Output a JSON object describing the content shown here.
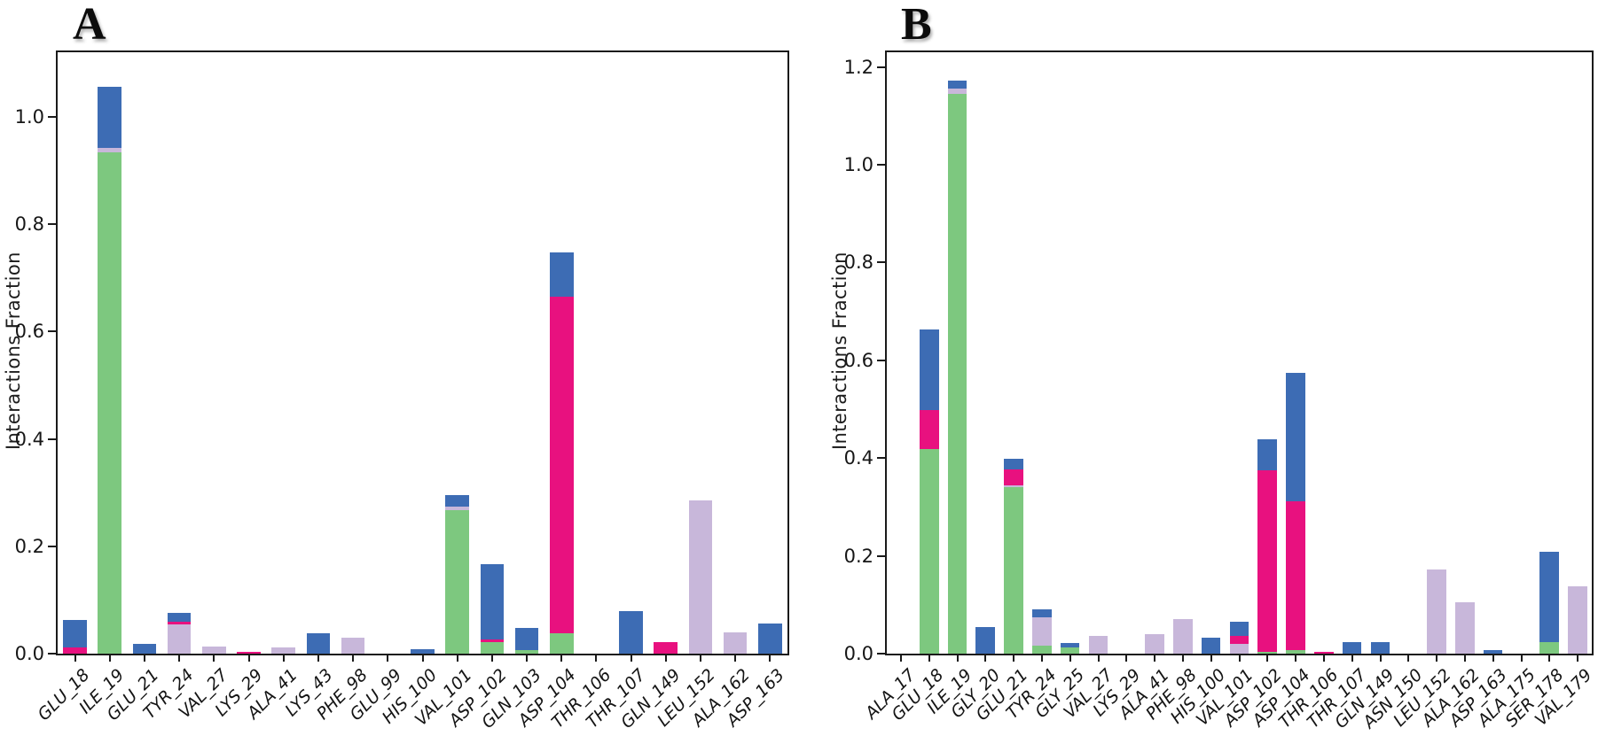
{
  "figure": {
    "background": "#ffffff"
  },
  "chart_data": [
    {
      "type": "bar",
      "stacked": true,
      "title": "A",
      "ylabel": "Interactions Fraction",
      "ylim": [
        0,
        1.12
      ],
      "yticks": [
        0.0,
        0.2,
        0.4,
        0.6,
        0.8,
        1.0
      ],
      "grid": false,
      "legend": "none",
      "categories": [
        "GLU_18",
        "ILE_19",
        "GLU_21",
        "TYR_24",
        "VAL_27",
        "LYS_29",
        "ALA_41",
        "LYS_43",
        "PHE_98",
        "GLU_99",
        "HIS_100",
        "VAL_101",
        "ASP_102",
        "GLN_103",
        "ASP_104",
        "THR_106",
        "THR_107",
        "GLN_149",
        "LEU_152",
        "ALA_162",
        "ASP_163"
      ],
      "series": [
        {
          "name": "green",
          "color": "#7dc87f",
          "values": [
            0,
            0.934,
            0,
            0,
            0,
            0,
            0,
            0,
            0,
            0,
            0,
            0.268,
            0.022,
            0.006,
            0.038,
            0,
            0,
            0,
            0,
            0,
            0
          ]
        },
        {
          "name": "lavender",
          "color": "#c8b7da",
          "values": [
            0,
            0.008,
            0,
            0.055,
            0.014,
            0,
            0.012,
            0,
            0.03,
            0,
            0,
            0.006,
            0,
            0,
            0,
            0,
            0,
            0,
            0.285,
            0.04,
            0
          ]
        },
        {
          "name": "magenta",
          "color": "#e8117f",
          "values": [
            0.012,
            0,
            0,
            0.005,
            0,
            0.004,
            0,
            0,
            0,
            0,
            0,
            0,
            0.004,
            0,
            0.626,
            0,
            0,
            0.022,
            0,
            0,
            0
          ]
        },
        {
          "name": "blue",
          "color": "#3d6cb4",
          "values": [
            0.05,
            0.114,
            0.018,
            0.016,
            0,
            0,
            0,
            0.038,
            0,
            0,
            0.008,
            0.022,
            0.14,
            0.042,
            0.083,
            0,
            0.079,
            0,
            0,
            0,
            0.056
          ]
        }
      ]
    },
    {
      "type": "bar",
      "stacked": true,
      "title": "B",
      "ylabel": "Interactions Fraction",
      "ylim": [
        0,
        1.23
      ],
      "yticks": [
        0.0,
        0.2,
        0.4,
        0.6,
        0.8,
        1.0,
        1.2
      ],
      "grid": false,
      "legend": "none",
      "categories": [
        "ALA_17",
        "GLU_18",
        "ILE_19",
        "GLY_20",
        "GLU_21",
        "TYR_24",
        "GLY_25",
        "VAL_27",
        "LYS_29",
        "ALA_41",
        "PHE_98",
        "HIS_100",
        "VAL_101",
        "ASP_102",
        "ASP_104",
        "THR_106",
        "THR_107",
        "GLN_149",
        "ASN_150",
        "LEU_152",
        "ALA_162",
        "ASP_163",
        "ALA_175",
        "SER_178",
        "VAL_179"
      ],
      "series": [
        {
          "name": "green",
          "color": "#7dc87f",
          "values": [
            0,
            0.419,
            1.145,
            0,
            0.34,
            0.017,
            0.013,
            0,
            0,
            0,
            0,
            0,
            0,
            0.004,
            0.008,
            0,
            0,
            0,
            0,
            0,
            0,
            0,
            0,
            0.024,
            0
          ]
        },
        {
          "name": "lavender",
          "color": "#c8b7da",
          "values": [
            0,
            0,
            0.01,
            0,
            0.004,
            0.057,
            0,
            0.036,
            0,
            0.04,
            0.07,
            0,
            0.02,
            0,
            0,
            0,
            0,
            0,
            0,
            0.172,
            0.105,
            0,
            0,
            0,
            0.138
          ]
        },
        {
          "name": "magenta",
          "color": "#e8117f",
          "values": [
            0,
            0.08,
            0,
            0,
            0.033,
            0,
            0,
            0,
            0,
            0,
            0,
            0,
            0.016,
            0.371,
            0.304,
            0.004,
            0,
            0,
            0,
            0,
            0,
            0,
            0,
            0,
            0
          ]
        },
        {
          "name": "blue",
          "color": "#3d6cb4",
          "values": [
            0,
            0.164,
            0.017,
            0.055,
            0.022,
            0.016,
            0.008,
            0,
            0,
            0,
            0,
            0.032,
            0.03,
            0.064,
            0.263,
            0,
            0.023,
            0.023,
            0,
            0,
            0,
            0.007,
            0,
            0.185,
            0
          ]
        }
      ]
    }
  ]
}
